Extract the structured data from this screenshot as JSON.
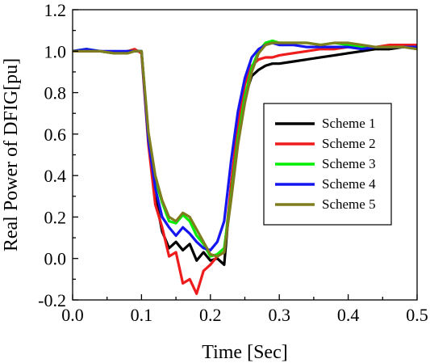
{
  "chart_data": {
    "type": "line",
    "title": "",
    "xlabel": "Time [Sec]",
    "ylabel": "Real Power of DFIG[pu]",
    "xlim": [
      0.0,
      0.5
    ],
    "ylim": [
      -0.2,
      1.2
    ],
    "x_ticks": [
      0.0,
      0.1,
      0.2,
      0.3,
      0.4,
      0.5
    ],
    "x_tick_labels": [
      "0.0",
      "0.1",
      "0.2",
      "0.3",
      "0.4",
      "0.5"
    ],
    "y_ticks": [
      -0.2,
      0.0,
      0.2,
      0.4,
      0.6,
      0.8,
      1.0,
      1.2
    ],
    "y_tick_labels": [
      "-0.2",
      "0.0",
      "0.2",
      "0.4",
      "0.6",
      "0.8",
      "1.0",
      "1.2"
    ],
    "grid": false,
    "legend_position": "right",
    "series": [
      {
        "name": "Scheme 1",
        "color": "#000000",
        "x": [
          0.0,
          0.02,
          0.04,
          0.06,
          0.08,
          0.09,
          0.1,
          0.11,
          0.12,
          0.13,
          0.14,
          0.15,
          0.16,
          0.17,
          0.18,
          0.19,
          0.2,
          0.21,
          0.22,
          0.23,
          0.24,
          0.25,
          0.26,
          0.27,
          0.28,
          0.29,
          0.3,
          0.32,
          0.34,
          0.36,
          0.38,
          0.4,
          0.42,
          0.44,
          0.46,
          0.48,
          0.5
        ],
        "y": [
          1.0,
          1.0,
          1.0,
          0.99,
          1.0,
          1.0,
          1.0,
          0.58,
          0.3,
          0.13,
          0.05,
          0.08,
          0.04,
          0.07,
          -0.01,
          0.03,
          -0.01,
          0.0,
          -0.03,
          0.35,
          0.62,
          0.78,
          0.88,
          0.91,
          0.93,
          0.94,
          0.94,
          0.95,
          0.96,
          0.97,
          0.98,
          0.99,
          1.0,
          1.01,
          1.01,
          1.02,
          1.02
        ]
      },
      {
        "name": "Scheme 2",
        "color": "#ee1c1c",
        "x": [
          0.0,
          0.02,
          0.04,
          0.06,
          0.08,
          0.09,
          0.1,
          0.11,
          0.12,
          0.13,
          0.14,
          0.15,
          0.16,
          0.17,
          0.18,
          0.19,
          0.2,
          0.21,
          0.22,
          0.23,
          0.24,
          0.25,
          0.26,
          0.27,
          0.28,
          0.29,
          0.3,
          0.32,
          0.34,
          0.36,
          0.38,
          0.4,
          0.42,
          0.44,
          0.46,
          0.48,
          0.5
        ],
        "y": [
          1.0,
          1.0,
          1.0,
          0.99,
          1.0,
          1.01,
          0.99,
          0.55,
          0.26,
          0.15,
          0.01,
          0.03,
          -0.12,
          -0.1,
          -0.17,
          -0.06,
          -0.03,
          0.01,
          0.03,
          0.35,
          0.65,
          0.84,
          0.93,
          0.96,
          0.97,
          0.97,
          0.98,
          0.99,
          1.0,
          1.01,
          1.01,
          1.02,
          1.02,
          1.02,
          1.03,
          1.03,
          1.03
        ]
      },
      {
        "name": "Scheme 3",
        "color": "#00ee00",
        "x": [
          0.0,
          0.02,
          0.04,
          0.06,
          0.08,
          0.09,
          0.1,
          0.11,
          0.12,
          0.13,
          0.14,
          0.15,
          0.16,
          0.17,
          0.18,
          0.19,
          0.2,
          0.21,
          0.22,
          0.23,
          0.24,
          0.25,
          0.26,
          0.27,
          0.28,
          0.29,
          0.3,
          0.32,
          0.34,
          0.36,
          0.38,
          0.4,
          0.42,
          0.44,
          0.46,
          0.48,
          0.5
        ],
        "y": [
          1.0,
          1.01,
          1.0,
          0.99,
          1.0,
          1.0,
          1.0,
          0.6,
          0.38,
          0.27,
          0.18,
          0.17,
          0.21,
          0.18,
          0.11,
          0.07,
          0.01,
          0.02,
          0.05,
          0.3,
          0.58,
          0.78,
          0.92,
          1.0,
          1.04,
          1.05,
          1.04,
          1.04,
          1.04,
          1.03,
          1.04,
          1.03,
          1.02,
          1.02,
          1.02,
          1.02,
          1.02
        ]
      },
      {
        "name": "Scheme 4",
        "color": "#1515f0",
        "x": [
          0.0,
          0.02,
          0.04,
          0.06,
          0.08,
          0.09,
          0.1,
          0.11,
          0.12,
          0.13,
          0.14,
          0.15,
          0.16,
          0.17,
          0.18,
          0.19,
          0.2,
          0.21,
          0.22,
          0.23,
          0.24,
          0.25,
          0.26,
          0.27,
          0.28,
          0.29,
          0.3,
          0.32,
          0.34,
          0.36,
          0.38,
          0.4,
          0.42,
          0.44,
          0.46,
          0.48,
          0.5
        ],
        "y": [
          1.0,
          1.01,
          1.0,
          1.0,
          1.0,
          1.0,
          1.0,
          0.57,
          0.34,
          0.2,
          0.15,
          0.11,
          0.15,
          0.12,
          0.08,
          0.05,
          0.04,
          0.08,
          0.18,
          0.47,
          0.71,
          0.87,
          0.97,
          1.01,
          1.03,
          1.04,
          1.03,
          1.03,
          1.02,
          1.02,
          1.02,
          1.02,
          1.01,
          1.02,
          1.02,
          1.02,
          1.02
        ]
      },
      {
        "name": "Scheme 5",
        "color": "#7e7e1e",
        "x": [
          0.0,
          0.02,
          0.04,
          0.06,
          0.08,
          0.09,
          0.1,
          0.11,
          0.12,
          0.13,
          0.14,
          0.15,
          0.16,
          0.17,
          0.18,
          0.19,
          0.2,
          0.21,
          0.22,
          0.23,
          0.24,
          0.25,
          0.26,
          0.27,
          0.28,
          0.29,
          0.3,
          0.32,
          0.34,
          0.36,
          0.38,
          0.4,
          0.42,
          0.44,
          0.46,
          0.48,
          0.5
        ],
        "y": [
          1.0,
          1.0,
          1.0,
          0.99,
          0.99,
          1.0,
          1.0,
          0.61,
          0.4,
          0.28,
          0.2,
          0.18,
          0.22,
          0.2,
          0.14,
          0.08,
          0.02,
          0.01,
          0.03,
          0.28,
          0.55,
          0.75,
          0.9,
          0.99,
          1.03,
          1.04,
          1.04,
          1.04,
          1.04,
          1.03,
          1.04,
          1.04,
          1.03,
          1.02,
          1.02,
          1.02,
          1.01
        ]
      }
    ]
  }
}
